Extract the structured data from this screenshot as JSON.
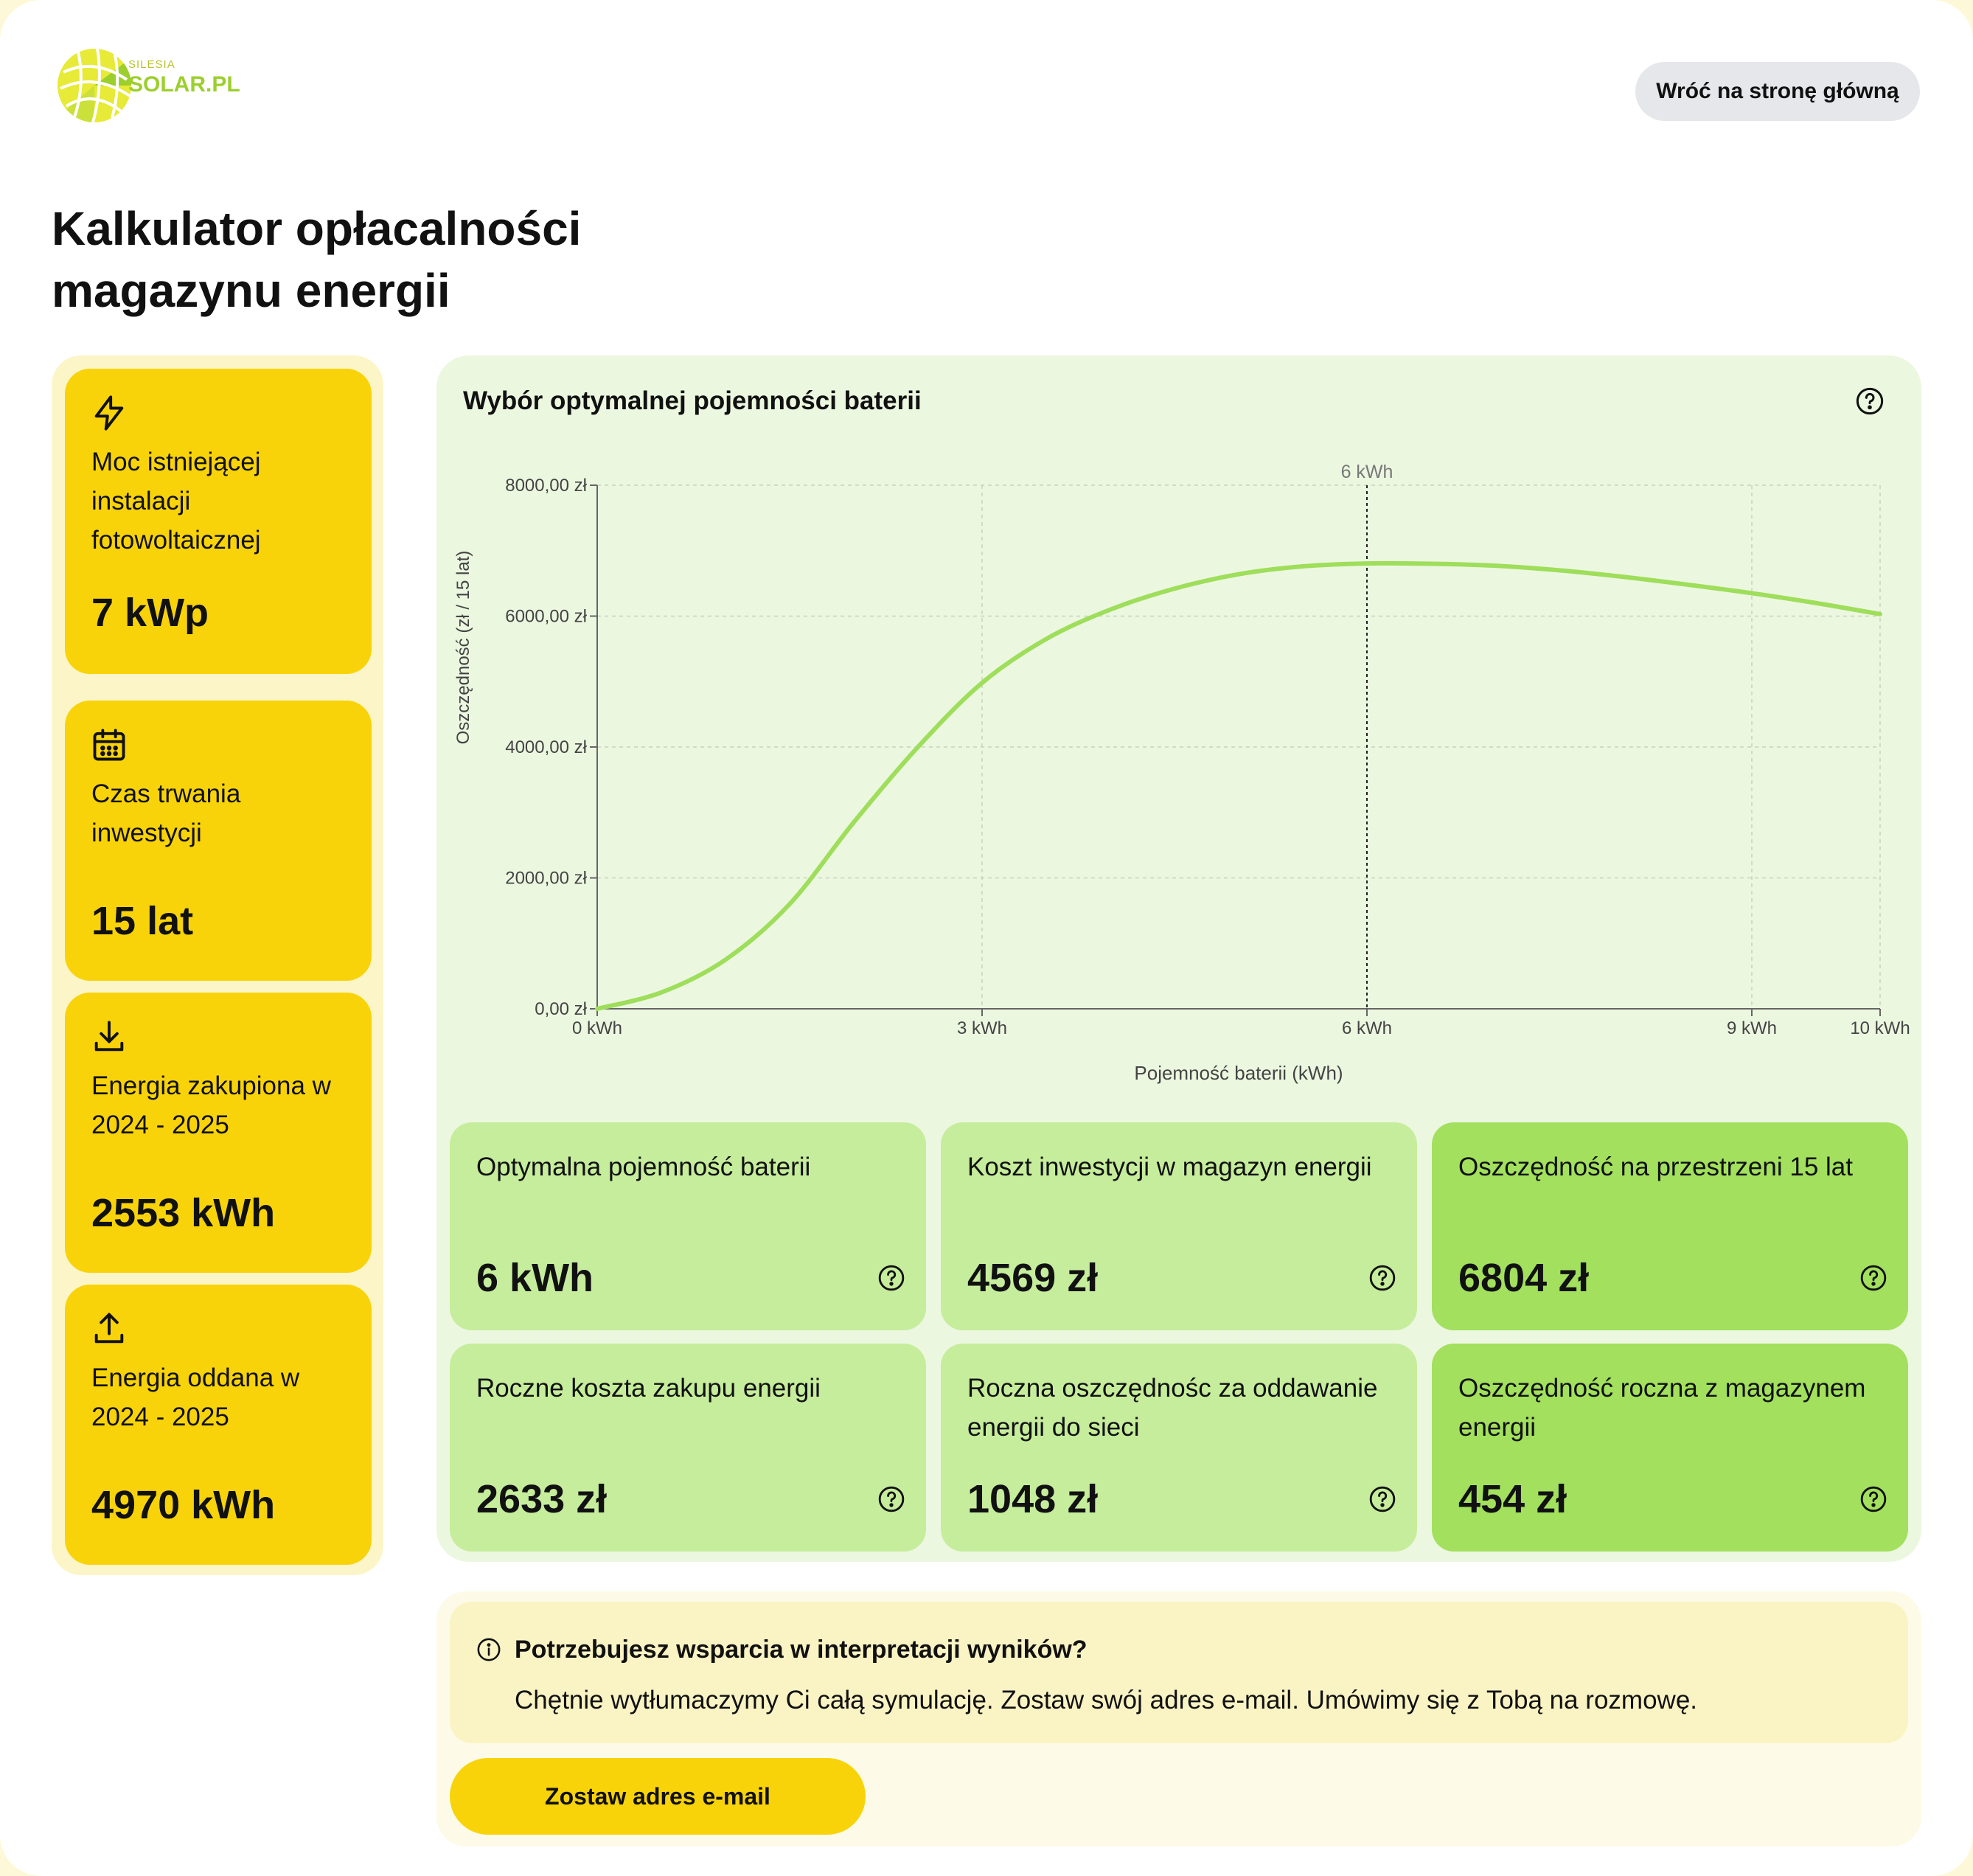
{
  "header": {
    "logo_small": "SILESIA",
    "logo_big": "SOLAR.PL",
    "back_button": "Wróć na stronę główną"
  },
  "title": "Kalkulator opłacalności magazynu energii",
  "inputs": [
    {
      "icon": "lightning-icon",
      "label": "Moc istniejącej instalacji fotowoltaicznej",
      "value": "7 kWp"
    },
    {
      "icon": "calendar-icon",
      "label": "Czas trwania inwestycji",
      "value": "15 lat"
    },
    {
      "icon": "download-icon",
      "label": "Energia zakupiona w 2024 - 2025",
      "value": "2553 kWh"
    },
    {
      "icon": "upload-icon",
      "label": "Energia oddana w 2024 - 2025",
      "value": "4970 kWh"
    }
  ],
  "chart_panel_title": "Wybór optymalnej pojemności baterii",
  "chart_data": {
    "type": "line",
    "title": "Wybór optymalnej pojemności baterii",
    "xlabel": "Pojemność baterii (kWh)",
    "ylabel": "Oszczędność (zł / 15 lat)",
    "xlim": [
      0,
      10
    ],
    "ylim": [
      0,
      8000
    ],
    "x_ticks": [
      0,
      3,
      6,
      9,
      10
    ],
    "x_tick_labels": [
      "0 kWh",
      "3 kWh",
      "6 kWh",
      "9 kWh",
      "10 kWh"
    ],
    "y_ticks": [
      0,
      2000,
      4000,
      6000,
      8000
    ],
    "y_tick_labels": [
      "0,00 zł",
      "2000,00 zł",
      "4000,00 zł",
      "6000,00 zł",
      "8000,00 zł"
    ],
    "marker": {
      "x": 6,
      "label": "6 kWh"
    },
    "grid": true,
    "line_color": "#9ede5b",
    "series": [
      {
        "x": [
          0,
          0.5,
          1,
          1.5,
          2,
          2.5,
          3,
          3.5,
          4,
          4.5,
          5,
          5.5,
          6,
          6.5,
          7,
          7.5,
          8,
          8.5,
          9,
          9.5,
          10
        ],
        "values": [
          0,
          250,
          750,
          1600,
          2850,
          4000,
          4980,
          5650,
          6100,
          6420,
          6640,
          6760,
          6804,
          6800,
          6770,
          6700,
          6600,
          6480,
          6350,
          6200,
          6030
        ]
      }
    ]
  },
  "results": [
    {
      "label": "Optymalna pojemność baterii",
      "value": "6 kWh"
    },
    {
      "label": "Koszt inwestycji w magazyn energii",
      "value": "4569 zł"
    },
    {
      "label": "Oszczędność na przestrzeni 15 lat",
      "value": "6804 zł"
    },
    {
      "label": "Roczne koszta zakupu energii",
      "value": "2633 zł"
    },
    {
      "label": "Roczna oszczędnośc za oddawanie energii do sieci",
      "value": "1048 zł"
    },
    {
      "label": "Oszczędność roczna z magazynem energii",
      "value": "454 zł"
    }
  ],
  "help": {
    "title": "Potrzebujesz wsparcia w interpretacji wyników?",
    "text": "Chętnie wytłumaczymy Ci całą symulację. Zostaw swój adres e-mail. Umówimy się z Tobą na rozmowę.",
    "button": "Zostaw adres e-mail"
  },
  "colors": {
    "yellow_card": "#f8d30a",
    "green_card": "#c6ed9c",
    "green_card_dark": "#a2e05e",
    "chart_line": "#9ede5b"
  }
}
